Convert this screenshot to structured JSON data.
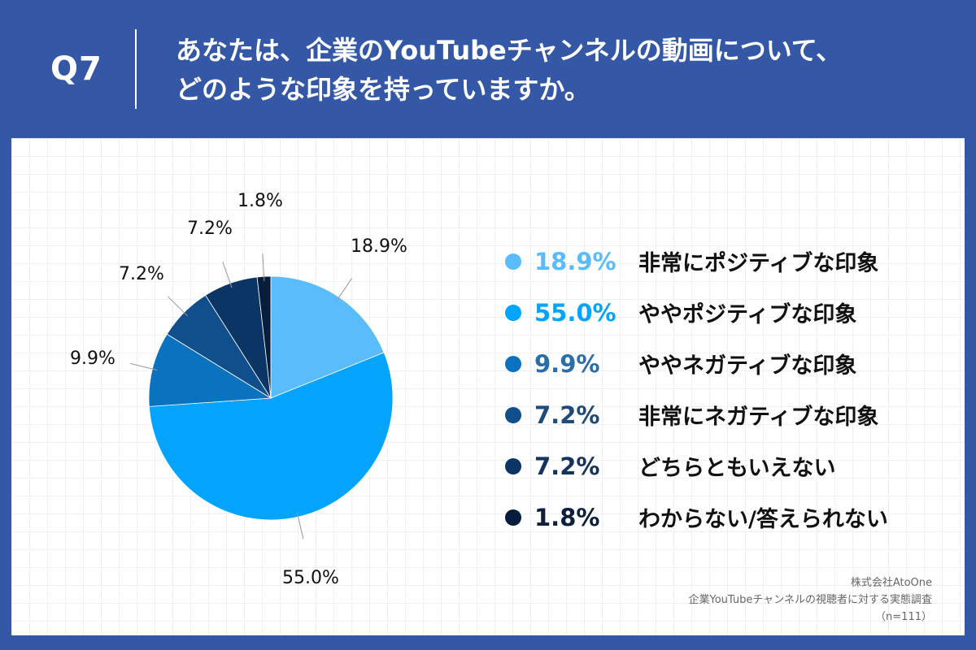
{
  "header": {
    "qnum": "Q7",
    "question_lines": [
      "あなたは、企業のYouTubeチャンネルの動画について、",
      "どのような印象を持っていますか。"
    ]
  },
  "chart_data": {
    "type": "pie",
    "title": "",
    "start_angle_deg": 0,
    "direction": "clockwise",
    "slices": [
      {
        "label": "非常にポジティブな印象",
        "value": 18.9,
        "display": "18.9%",
        "color": "#5bbcfb"
      },
      {
        "label": "ややポジティブな印象",
        "value": 55.0,
        "display": "55.0%",
        "color": "#05a4fc"
      },
      {
        "label": "ややネガティブな印象",
        "value": 9.9,
        "display": "9.9%",
        "color": "#0a72bf"
      },
      {
        "label": "非常にネガティブな印象",
        "value": 7.2,
        "display": "7.2%",
        "color": "#114f8c"
      },
      {
        "label": "どちらともいえない",
        "value": 7.2,
        "display": "7.2%",
        "color": "#0a3565"
      },
      {
        "label": "わからない/答えられない",
        "value": 1.8,
        "display": "1.8%",
        "color": "#071d3d"
      }
    ],
    "legend_value_colors": [
      "#5bbcfb",
      "#05a4fc",
      "#2a6ea8",
      "#1f4a7a",
      "#15335b",
      "#0c1f3d"
    ],
    "legend_placement": "right"
  },
  "source": {
    "company": "株式会社AtoOne",
    "survey": "企業YouTubeチャンネルの視聴者に対する実態調査",
    "n": "（n=111）"
  }
}
